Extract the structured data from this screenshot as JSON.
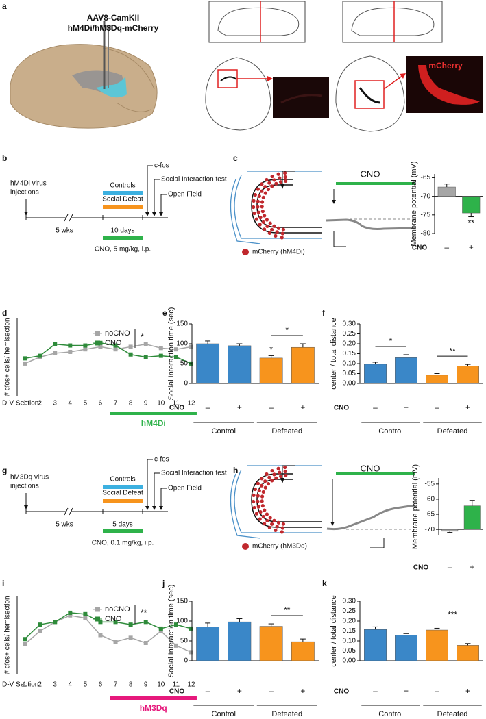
{
  "figure": {
    "panel_labels": [
      "a",
      "b",
      "c",
      "d",
      "e",
      "f",
      "g",
      "h",
      "i",
      "j",
      "k"
    ],
    "a": {
      "construct": [
        "AAV8-CamKII",
        "hM4Di/hM3Dq-mCherry"
      ],
      "stain": "mCherry"
    },
    "b": {
      "virus": [
        "hM4Di virus",
        "injections"
      ],
      "controls": "Controls",
      "defeat": "Social Defeat",
      "cfos": "c-fos",
      "test": "Social Interaction test",
      "field": "Open Field",
      "wait": "5 wks",
      "duration": "10 days",
      "dose": "CNO, 5 mg/kg, i.p."
    },
    "c": {
      "drug": "CNO",
      "cells": "mCherry (hM4Di)"
    },
    "g": {
      "virus": [
        "hM3Dq virus",
        "injections"
      ],
      "controls": "Controls",
      "defeat": "Social Defeat",
      "cfos": "c-fos",
      "test": "Social Interaction test",
      "field": "Open Field",
      "wait": "5 wks",
      "duration": "5 days",
      "dose": "CNO, 0.1 mg/kg, i.p."
    },
    "h": {
      "drug": "CNO",
      "cells": "mCherry (hM3Dq)"
    }
  },
  "chart_data": [
    {
      "type": "bar",
      "ylabel": "Membrane potential (mV)",
      "xlabel": "CNO",
      "categories": [
        "–",
        "+"
      ],
      "values": [
        -67.5,
        -74.5
      ],
      "errors": [
        0.8,
        1.0
      ],
      "colors": [
        "#a6a6a6",
        "#2eb24a"
      ],
      "base": -70,
      "ylim": [
        -80,
        -64
      ],
      "yticks": [
        -65,
        -70,
        -75,
        -80
      ],
      "bar_stars": [
        null,
        "**"
      ]
    },
    {
      "type": "line",
      "ylabel": "# cfos+ cells/ hemisection",
      "xlabel": "D-V Section:",
      "x": [
        1,
        2,
        3,
        4,
        5,
        6,
        7,
        8,
        9,
        10,
        11,
        12
      ],
      "xticks": [
        1,
        2,
        3,
        4,
        5,
        6,
        7,
        8,
        9,
        10,
        11,
        12
      ],
      "xlim": [
        0.5,
        12.5
      ],
      "ylim": [
        0,
        60
      ],
      "series": [
        {
          "name": "noCNO",
          "color": "#a6a6a6",
          "values": [
            25,
            30,
            33,
            34,
            36,
            38,
            36,
            38,
            40,
            37,
            36,
            38
          ]
        },
        {
          "name": "CNO",
          "color": "#2e8b3a",
          "values": [
            29,
            31,
            40,
            39,
            39,
            41,
            39,
            32,
            30,
            31,
            30,
            25
          ]
        }
      ],
      "significance": "*",
      "treatment": {
        "label": "hM4Di",
        "from": 7,
        "to": 12,
        "color": "#2eb24a"
      }
    },
    {
      "type": "bar",
      "ylabel": "Social Interaction time (sec)",
      "xlabel": "CNO",
      "categories": [
        "–",
        "+",
        "–",
        "+"
      ],
      "values": [
        100,
        95,
        64,
        91
      ],
      "errors": [
        7,
        5,
        6,
        9
      ],
      "colors": [
        "#3a87c8",
        "#3a87c8",
        "#f7941d",
        "#f7941d"
      ],
      "ylim": [
        0,
        150
      ],
      "yticks": [
        0,
        50,
        100,
        150
      ],
      "bar_stars": [
        null,
        null,
        "*",
        null
      ],
      "groups": [
        {
          "name": "Control",
          "comparison": null
        },
        {
          "name": "Defeated",
          "comparison": "*"
        }
      ]
    },
    {
      "type": "bar",
      "ylabel": "center / total distance",
      "xlabel": "CNO",
      "categories": [
        "–",
        "+",
        "–",
        "+"
      ],
      "values": [
        0.097,
        0.13,
        0.042,
        0.088
      ],
      "errors": [
        0.01,
        0.015,
        0.008,
        0.008
      ],
      "colors": [
        "#3a87c8",
        "#3a87c8",
        "#f7941d",
        "#f7941d"
      ],
      "ylim": [
        0,
        0.3
      ],
      "yticks": [
        {
          "value": 0,
          "label": "0.00"
        },
        {
          "value": 0.05,
          "label": "0.05"
        },
        {
          "value": 0.1,
          "label": "0.10"
        },
        {
          "value": 0.15,
          "label": "0.15"
        },
        {
          "value": 0.2,
          "label": "0.20"
        },
        {
          "value": 0.25,
          "label": "0.25"
        },
        {
          "value": 0.3,
          "label": "0.30"
        }
      ],
      "groups": [
        {
          "name": "Control",
          "comparison": "*"
        },
        {
          "name": "Defeated",
          "comparison": "**"
        }
      ]
    },
    {
      "type": "bar",
      "ylabel": "Membrane potential (mV)",
      "xlabel": "CNO",
      "categories": [
        "–",
        "+"
      ],
      "values": [
        -70.6,
        -62.2
      ],
      "errors": [
        0.4,
        1.8
      ],
      "colors": [
        "#a6a6a6",
        "#2eb24a"
      ],
      "base": -70,
      "ylim": [
        -72,
        -53
      ],
      "yticks": [
        -55,
        -60,
        -65,
        -70
      ]
    },
    {
      "type": "line",
      "ylabel": "# cfos+ cells/ hemisection",
      "xlabel": "D-V Section:",
      "x": [
        1,
        2,
        3,
        4,
        5,
        6,
        7,
        8,
        9,
        10,
        11,
        12
      ],
      "xticks": [
        1,
        2,
        3,
        4,
        5,
        6,
        7,
        8,
        9,
        10,
        11,
        12
      ],
      "xlim": [
        0.5,
        12.5
      ],
      "ylim": [
        0,
        60
      ],
      "series": [
        {
          "name": "noCNO",
          "color": "#a6a6a6",
          "values": [
            23,
            33,
            40,
            45,
            43,
            30,
            25,
            28,
            24,
            33,
            22,
            17
          ]
        },
        {
          "name": "CNO",
          "color": "#2e8b3a",
          "values": [
            27,
            38,
            40,
            47,
            46,
            40,
            40,
            38,
            40,
            35,
            38,
            35
          ]
        }
      ],
      "significance": "**",
      "treatment": {
        "label": "hM3Dq",
        "from": 7,
        "to": 12,
        "color": "#e6197c"
      }
    },
    {
      "type": "bar",
      "ylabel": "Social Interaction time (sec)",
      "xlabel": "CNO",
      "categories": [
        "–",
        "+",
        "–",
        "+"
      ],
      "values": [
        85,
        98,
        87,
        48
      ],
      "errors": [
        10,
        8,
        6,
        7
      ],
      "colors": [
        "#3a87c8",
        "#3a87c8",
        "#f7941d",
        "#f7941d"
      ],
      "ylim": [
        0,
        150
      ],
      "yticks": [
        0,
        50,
        100,
        150
      ],
      "groups": [
        {
          "name": "Control",
          "comparison": null
        },
        {
          "name": "Defeated",
          "comparison": "**"
        }
      ]
    },
    {
      "type": "bar",
      "ylabel": "center / total distance",
      "xlabel": "CNO",
      "categories": [
        "–",
        "+",
        "–",
        "+"
      ],
      "values": [
        0.158,
        0.13,
        0.155,
        0.078
      ],
      "errors": [
        0.013,
        0.007,
        0.009,
        0.009
      ],
      "colors": [
        "#3a87c8",
        "#3a87c8",
        "#f7941d",
        "#f7941d"
      ],
      "ylim": [
        0,
        0.3
      ],
      "yticks": [
        {
          "value": 0,
          "label": "0.00"
        },
        {
          "value": 0.05,
          "label": "0.05"
        },
        {
          "value": 0.1,
          "label": "0.10"
        },
        {
          "value": 0.15,
          "label": "0.15"
        },
        {
          "value": 0.2,
          "label": "0.20"
        },
        {
          "value": 0.25,
          "label": "0.25"
        },
        {
          "value": 0.3,
          "label": "0.30"
        }
      ],
      "groups": [
        {
          "name": "Control",
          "comparison": null
        },
        {
          "name": "Defeated",
          "comparison": "***"
        }
      ]
    }
  ]
}
